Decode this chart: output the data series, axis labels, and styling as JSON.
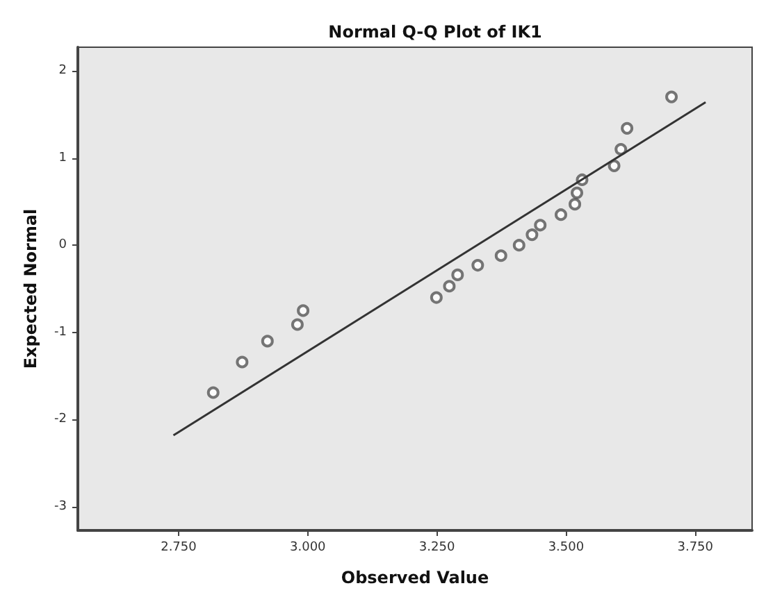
{
  "chart_data": {
    "type": "scatter",
    "title": "Normal Q-Q Plot of IK1",
    "xlabel": "Observed Value",
    "ylabel": "Expected Normal",
    "xlim": [
      2.555,
      3.86
    ],
    "ylim": [
      -3.27,
      2.27
    ],
    "xticks": [
      {
        "value": 2.75,
        "label": "2.750"
      },
      {
        "value": 3,
        "label": "3.000"
      },
      {
        "value": 3.25,
        "label": "3.250"
      },
      {
        "value": 3.5,
        "label": "3.500"
      },
      {
        "value": 3.75,
        "label": "3.750"
      }
    ],
    "yticks": [
      -3,
      -2,
      -1,
      0,
      1,
      2
    ],
    "grid": false,
    "marker": "circle",
    "series": [
      {
        "color": "#555555",
        "x": [
          2.817,
          2.873,
          2.922,
          2.98,
          2.991,
          3.249,
          3.274,
          3.29,
          3.329,
          3.374,
          3.409,
          3.434,
          3.45,
          3.49,
          3.517,
          3.521,
          3.531,
          3.593,
          3.606,
          3.618,
          3.704
        ],
        "values": [
          -1.69,
          -1.34,
          -1.1,
          -0.91,
          -0.75,
          -0.6,
          -0.47,
          -0.34,
          -0.23,
          -0.12,
          0,
          0.12,
          0.23,
          0.35,
          0.47,
          0.6,
          0.75,
          0.91,
          1.1,
          1.34,
          1.7
        ]
      },
      {
        "type": "line",
        "color": "#333333",
        "marker": "none",
        "line_style": "solid",
        "x": [
          2.74,
          3.77
        ],
        "values": [
          -2.18,
          1.64
        ]
      }
    ]
  }
}
